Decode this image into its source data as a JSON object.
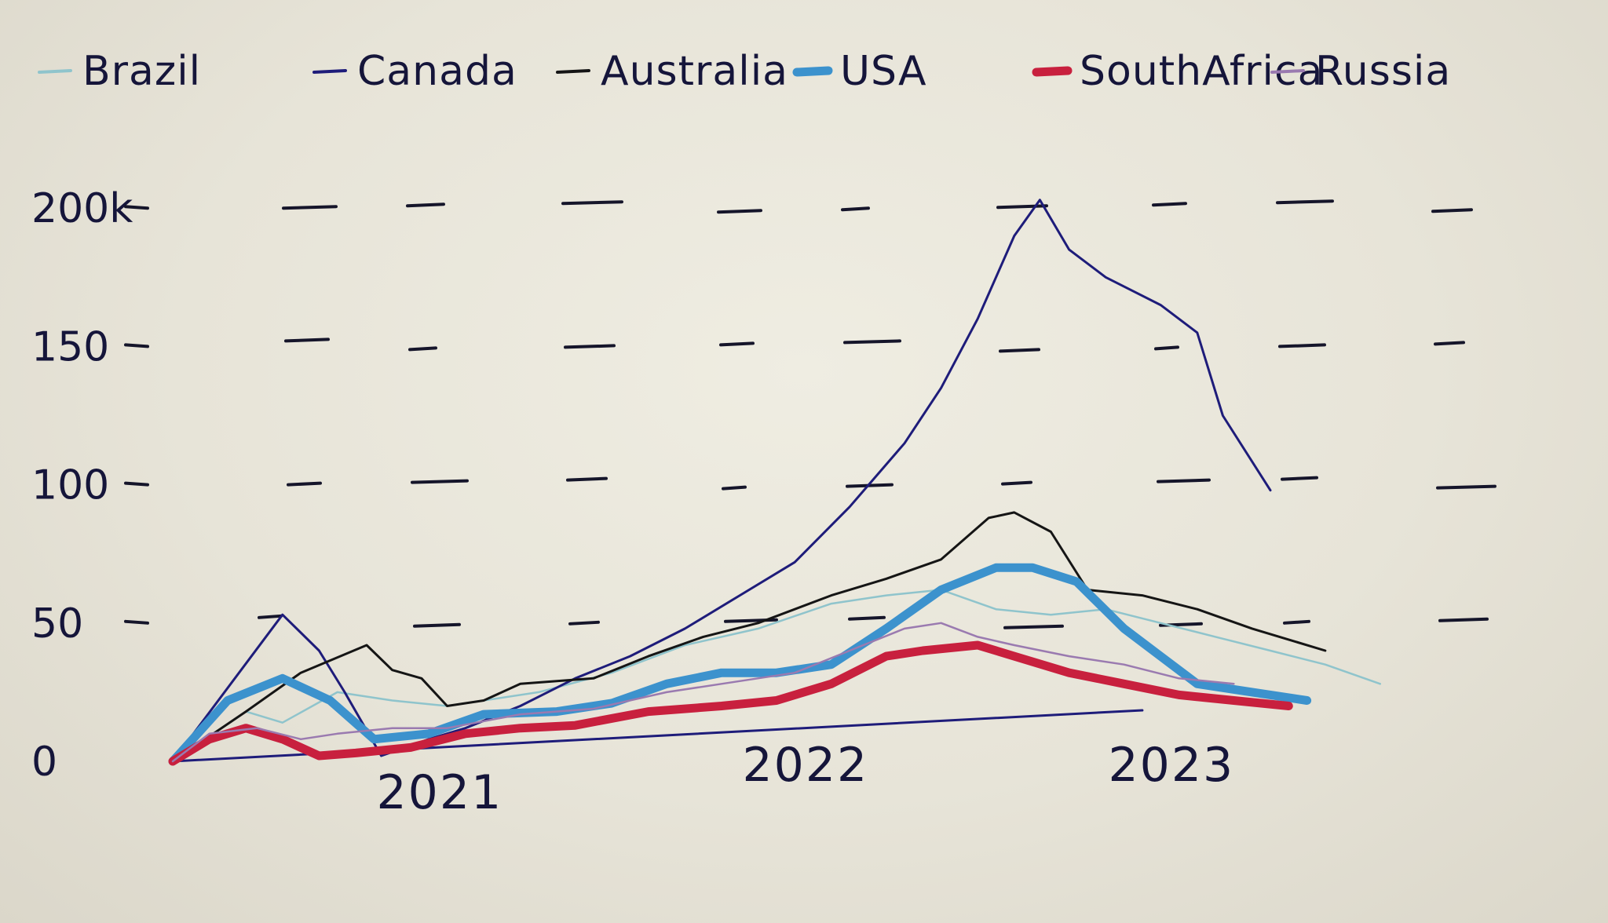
{
  "chart_data": {
    "type": "line",
    "x_ticks": [
      "2021",
      "2022",
      "2023"
    ],
    "y_ticks": [
      "0",
      "50",
      "100",
      "150",
      "200k"
    ],
    "ylim": [
      0,
      210
    ],
    "xlim": [
      2020.25,
      2023.55
    ],
    "grid": true,
    "legend_position": "top",
    "series": [
      {
        "name": "Brazil",
        "color": "#8fc4cc",
        "width": 2.5,
        "points": [
          [
            2020.25,
            0
          ],
          [
            2020.45,
            18
          ],
          [
            2020.55,
            14
          ],
          [
            2020.7,
            25
          ],
          [
            2020.85,
            22
          ],
          [
            2021.0,
            20
          ],
          [
            2021.25,
            25
          ],
          [
            2021.45,
            32
          ],
          [
            2021.65,
            42
          ],
          [
            2021.85,
            48
          ],
          [
            2022.05,
            57
          ],
          [
            2022.2,
            60
          ],
          [
            2022.35,
            62
          ],
          [
            2022.5,
            55
          ],
          [
            2022.65,
            53
          ],
          [
            2022.8,
            55
          ],
          [
            2022.95,
            50
          ],
          [
            2023.1,
            45
          ],
          [
            2023.25,
            40
          ],
          [
            2023.4,
            35
          ],
          [
            2023.55,
            28
          ]
        ]
      },
      {
        "name": "Canada",
        "color": "#1e1c7a",
        "width": 3,
        "points": [
          [
            2020.25,
            0
          ],
          [
            2020.55,
            53
          ],
          [
            2020.65,
            40
          ],
          [
            2020.72,
            25
          ],
          [
            2020.82,
            2
          ],
          [
            2020.95,
            8
          ],
          [
            2021.05,
            12
          ],
          [
            2021.2,
            20
          ],
          [
            2021.35,
            30
          ],
          [
            2021.5,
            38
          ],
          [
            2021.65,
            48
          ],
          [
            2021.8,
            60
          ],
          [
            2021.95,
            72
          ],
          [
            2022.1,
            92
          ],
          [
            2022.25,
            115
          ],
          [
            2022.35,
            135
          ],
          [
            2022.45,
            160
          ],
          [
            2022.55,
            190
          ],
          [
            2022.62,
            203
          ],
          [
            2022.7,
            185
          ],
          [
            2022.8,
            175
          ],
          [
            2022.95,
            165
          ],
          [
            2023.05,
            155
          ],
          [
            2023.12,
            125
          ],
          [
            2023.25,
            98
          ]
        ]
      },
      {
        "name": "Australia",
        "color": "#151515",
        "width": 3,
        "points": [
          [
            2020.25,
            0
          ],
          [
            2020.45,
            18
          ],
          [
            2020.6,
            32
          ],
          [
            2020.78,
            42
          ],
          [
            2020.85,
            33
          ],
          [
            2020.93,
            30
          ],
          [
            2021.0,
            20
          ],
          [
            2021.1,
            22
          ],
          [
            2021.2,
            28
          ],
          [
            2021.4,
            30
          ],
          [
            2021.55,
            38
          ],
          [
            2021.7,
            45
          ],
          [
            2021.85,
            50
          ],
          [
            2022.05,
            60
          ],
          [
            2022.2,
            66
          ],
          [
            2022.35,
            73
          ],
          [
            2022.48,
            88
          ],
          [
            2022.55,
            90
          ],
          [
            2022.65,
            83
          ],
          [
            2022.75,
            62
          ],
          [
            2022.9,
            60
          ],
          [
            2023.05,
            55
          ],
          [
            2023.2,
            48
          ],
          [
            2023.4,
            40
          ]
        ]
      },
      {
        "name": "USA",
        "color": "#3c92cd",
        "width": 11,
        "points": [
          [
            2020.25,
            0
          ],
          [
            2020.4,
            22
          ],
          [
            2020.55,
            30
          ],
          [
            2020.68,
            22
          ],
          [
            2020.8,
            8
          ],
          [
            2020.95,
            10
          ],
          [
            2021.1,
            17
          ],
          [
            2021.3,
            18
          ],
          [
            2021.45,
            21
          ],
          [
            2021.6,
            28
          ],
          [
            2021.75,
            32
          ],
          [
            2021.9,
            32
          ],
          [
            2022.05,
            35
          ],
          [
            2022.2,
            48
          ],
          [
            2022.35,
            62
          ],
          [
            2022.5,
            70
          ],
          [
            2022.6,
            70
          ],
          [
            2022.72,
            65
          ],
          [
            2022.85,
            48
          ],
          [
            2022.95,
            38
          ],
          [
            2023.05,
            28
          ],
          [
            2023.2,
            25
          ],
          [
            2023.35,
            22
          ]
        ]
      },
      {
        "name": "SouthAfrica",
        "color": "#c8203e",
        "width": 11,
        "points": [
          [
            2020.25,
            0
          ],
          [
            2020.35,
            8
          ],
          [
            2020.45,
            12
          ],
          [
            2020.55,
            8
          ],
          [
            2020.65,
            2
          ],
          [
            2020.75,
            3
          ],
          [
            2020.9,
            5
          ],
          [
            2021.05,
            10
          ],
          [
            2021.2,
            12
          ],
          [
            2021.35,
            13
          ],
          [
            2021.55,
            18
          ],
          [
            2021.75,
            20
          ],
          [
            2021.9,
            22
          ],
          [
            2022.05,
            28
          ],
          [
            2022.2,
            38
          ],
          [
            2022.3,
            40
          ],
          [
            2022.45,
            42
          ],
          [
            2022.55,
            38
          ],
          [
            2022.7,
            32
          ],
          [
            2022.85,
            28
          ],
          [
            2023.0,
            24
          ],
          [
            2023.15,
            22
          ],
          [
            2023.3,
            20
          ]
        ]
      },
      {
        "name": "Russia",
        "color": "#9a7ab0",
        "width": 2.5,
        "points": [
          [
            2020.25,
            0
          ],
          [
            2020.35,
            10
          ],
          [
            2020.48,
            12
          ],
          [
            2020.6,
            8
          ],
          [
            2020.7,
            10
          ],
          [
            2020.85,
            12
          ],
          [
            2021.0,
            12
          ],
          [
            2021.2,
            17
          ],
          [
            2021.4,
            19
          ],
          [
            2021.6,
            25
          ],
          [
            2021.75,
            28
          ],
          [
            2021.95,
            32
          ],
          [
            2022.1,
            40
          ],
          [
            2022.25,
            48
          ],
          [
            2022.35,
            50
          ],
          [
            2022.45,
            45
          ],
          [
            2022.55,
            42
          ],
          [
            2022.7,
            38
          ],
          [
            2022.85,
            35
          ],
          [
            2023.0,
            30
          ],
          [
            2023.15,
            28
          ]
        ]
      }
    ]
  }
}
